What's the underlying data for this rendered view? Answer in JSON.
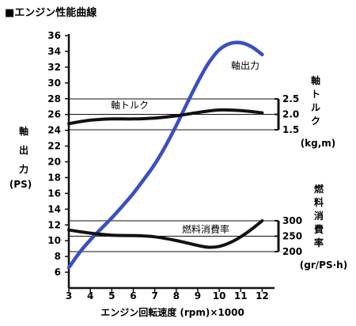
{
  "page_title": "■エンジン性能曲線",
  "chart_data": {
    "type": "line",
    "title": "■エンジン性能曲線",
    "xlabel": "エンジン回転速度 (rpm)×1000",
    "x_ticks": [
      3,
      4,
      5,
      6,
      7,
      8,
      9,
      10,
      11,
      12
    ],
    "xlim": [
      3,
      12.5
    ],
    "left_axis": {
      "label_chars": [
        "軸",
        "出",
        "力"
      ],
      "unit": "(PS)",
      "ticks": [
        6,
        8,
        10,
        12,
        14,
        16,
        18,
        20,
        22,
        24,
        26,
        28,
        30,
        32,
        34,
        36
      ],
      "ylim": [
        4,
        36
      ]
    },
    "torque_axis": {
      "label_chars": [
        "軸",
        "ト",
        "ル",
        "ク"
      ],
      "unit": "(kg,m)",
      "ticks": [
        "2.5",
        "2.0",
        "1.5"
      ],
      "ticks_value": [
        2.5,
        2.0,
        1.5
      ],
      "ylim": [
        1.5,
        2.5
      ]
    },
    "fuel_axis": {
      "label_chars": [
        "燃",
        "料",
        "消",
        "費",
        "率"
      ],
      "unit": "(gr/PS·h)",
      "ticks": [
        "300",
        "250",
        "200"
      ],
      "ticks_value": [
        300,
        250,
        200
      ],
      "ylim": [
        200,
        300
      ]
    },
    "series": [
      {
        "name": "軸出力",
        "color": "#3b4fbf",
        "axis": "power",
        "x": [
          3,
          3.5,
          4,
          4.5,
          5,
          5.5,
          6,
          6.5,
          7,
          7.5,
          8,
          8.5,
          9,
          9.5,
          10,
          10.5,
          11,
          11.5,
          12
        ],
        "y": [
          6.6,
          8.5,
          10.1,
          11.5,
          12.9,
          14.4,
          16.0,
          17.8,
          19.7,
          22.0,
          24.6,
          27.4,
          30.1,
          32.5,
          34.2,
          35.0,
          35.1,
          34.6,
          33.6
        ]
      },
      {
        "name": "軸トルク",
        "color": "#111111",
        "axis": "torque",
        "x": [
          3,
          4,
          5,
          6,
          7,
          8,
          9,
          10,
          11,
          12
        ],
        "y": [
          1.7,
          1.81,
          1.85,
          1.85,
          1.88,
          1.95,
          2.06,
          2.14,
          2.12,
          2.05
        ]
      },
      {
        "name": "燃料消費率",
        "color": "#111111",
        "axis": "fuel",
        "x": [
          3,
          4,
          5,
          6,
          7,
          8,
          9,
          9.5,
          10,
          10.5,
          11,
          11.5,
          12
        ],
        "y": [
          270,
          260,
          253,
          252,
          248,
          236,
          220,
          214,
          217,
          229,
          248,
          272,
          300
        ]
      }
    ],
    "annotations": [
      {
        "text": "軸出力",
        "series": "軸出力"
      },
      {
        "text": "軸トルク",
        "series": "軸トルク"
      },
      {
        "text": "燃料消費率",
        "series": "燃料消費率"
      }
    ]
  }
}
